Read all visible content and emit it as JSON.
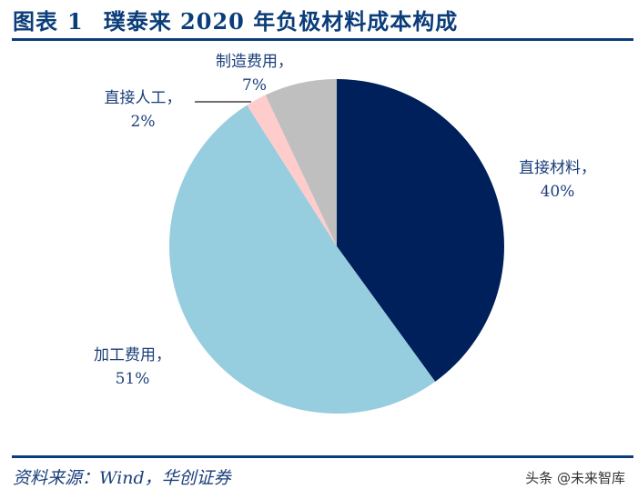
{
  "header": {
    "figure_label": "图表",
    "figure_number": "1",
    "title": "璞泰来 2020 年负极材料成本构成"
  },
  "footer": {
    "source": "资料来源：Wind，华创证券",
    "watermark": "头条 @未来智库"
  },
  "chart_data": {
    "type": "pie",
    "title": "璞泰来 2020 年负极材料成本构成",
    "start_angle_deg": 0,
    "direction": "clockwise",
    "slices": [
      {
        "label": "直接材料",
        "value": 40,
        "display": "40%",
        "color": "#00205b"
      },
      {
        "label": "加工费用",
        "value": 51,
        "display": "51%",
        "color": "#96cddf"
      },
      {
        "label": "直接人工",
        "value": 2,
        "display": "2%",
        "color": "#ffcccc"
      },
      {
        "label": "制造费用",
        "value": 7,
        "display": "7%",
        "color": "#bfbfbf"
      }
    ],
    "legend": "none",
    "data_labels": [
      {
        "name": "直接材料，",
        "pct": "40%"
      },
      {
        "name": "加工费用，",
        "pct": "51%"
      },
      {
        "name": "直接人工，",
        "pct": "2%"
      },
      {
        "name": "制造费用，",
        "pct": "7%"
      }
    ]
  }
}
